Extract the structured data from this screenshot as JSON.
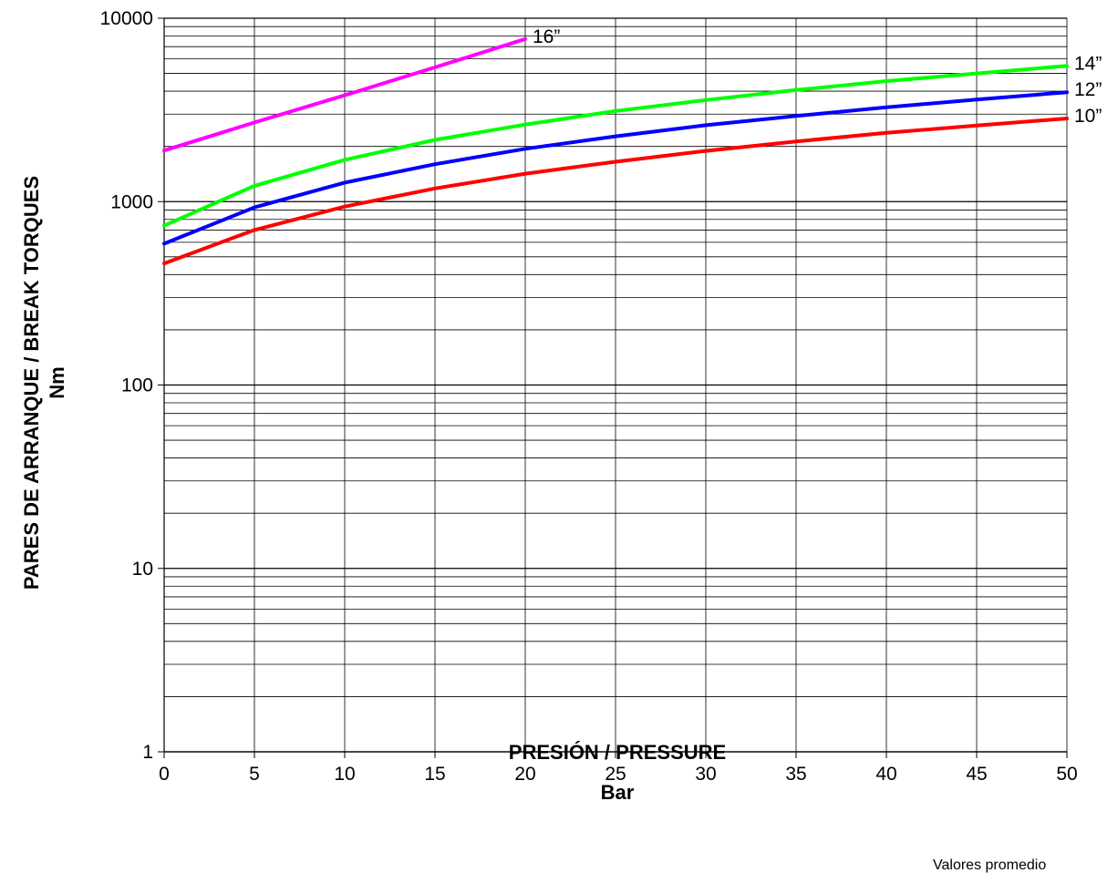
{
  "chart_data": {
    "type": "line",
    "xlabel": "PRESIÓN / PRESSURE",
    "xunit": "Bar",
    "ylabel": "PARES DE ARRANQUE / BREAK TORQUES",
    "yunit": "Nm",
    "note": "Valores promedio",
    "xlim": [
      0,
      50
    ],
    "ylim": [
      1,
      10000
    ],
    "y_scale": "log",
    "grid": true,
    "x_ticks": [
      "0",
      "5",
      "10",
      "15",
      "20",
      "25",
      "30",
      "35",
      "40",
      "45",
      "50"
    ],
    "y_ticks": [
      "1",
      "10",
      "100",
      "1000",
      "10000"
    ],
    "series": [
      {
        "name": "16”",
        "color": "#ff00ff",
        "x": [
          0,
          5,
          10,
          15,
          20
        ],
        "y": [
          1900,
          2700,
          3800,
          5400,
          7700
        ]
      },
      {
        "name": "14”",
        "color": "#00ff00",
        "x": [
          0,
          5,
          10,
          15,
          20,
          25,
          30,
          35,
          40,
          45,
          50
        ],
        "y": [
          740,
          1220,
          1690,
          2170,
          2630,
          3120,
          3580,
          4060,
          4540,
          5000,
          5500
        ]
      },
      {
        "name": "12”",
        "color": "#0000ff",
        "x": [
          0,
          5,
          10,
          15,
          20,
          25,
          30,
          35,
          40,
          45,
          50
        ],
        "y": [
          590,
          930,
          1270,
          1600,
          1940,
          2270,
          2610,
          2930,
          3270,
          3600,
          3950
        ]
      },
      {
        "name": "10”",
        "color": "#ff0000",
        "x": [
          0,
          5,
          10,
          15,
          20,
          25,
          30,
          35,
          40,
          45,
          50
        ],
        "y": [
          460,
          700,
          940,
          1180,
          1420,
          1650,
          1890,
          2130,
          2370,
          2600,
          2840
        ]
      }
    ]
  }
}
